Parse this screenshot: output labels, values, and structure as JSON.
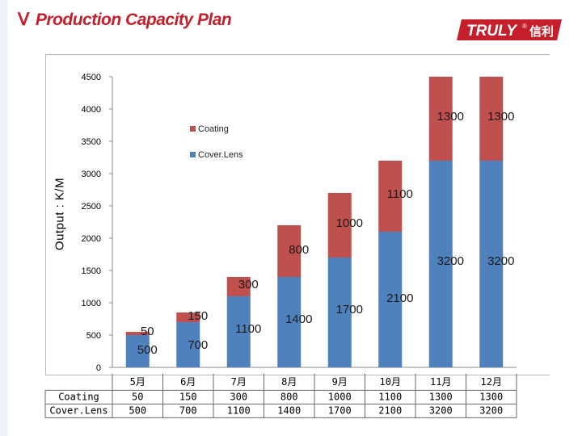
{
  "header": {
    "roman": "Ⅴ",
    "title": "Production Capacity Plan",
    "logo_text": "TRULY",
    "logo_reg": "®",
    "logo_cjk": "信利",
    "brand_color": "#c41f2b"
  },
  "chart_data": {
    "type": "bar",
    "stacked": true,
    "title": "",
    "ylabel": "Output : K/M",
    "xlabel": "",
    "ylim": [
      0,
      4500
    ],
    "yticks": [
      0,
      500,
      1000,
      1500,
      2000,
      2500,
      3000,
      3500,
      4000,
      4500
    ],
    "categories": [
      "5月",
      "6月",
      "7月",
      "8月",
      "9月",
      "10月",
      "11月",
      "12月"
    ],
    "series": [
      {
        "name": "Cover.Lens",
        "color": "#4f81bd",
        "values": [
          500,
          700,
          1100,
          1400,
          1700,
          2100,
          3200,
          3200
        ]
      },
      {
        "name": "Coating",
        "color": "#c0504d",
        "values": [
          50,
          150,
          300,
          800,
          1000,
          1100,
          1300,
          1300
        ]
      }
    ],
    "legend": {
      "position": "top-left inside plot",
      "order": [
        "Coating",
        "Cover.Lens"
      ]
    },
    "data_table": {
      "rows": [
        {
          "label": "Coating",
          "values": [
            "50",
            "150",
            "300",
            "800",
            "1000",
            "1100",
            "1300",
            "1300"
          ]
        },
        {
          "label": "Cover.Lens",
          "values": [
            "500",
            "700",
            "1100",
            "1400",
            "1700",
            "2100",
            "3200",
            "3200"
          ]
        }
      ]
    }
  }
}
